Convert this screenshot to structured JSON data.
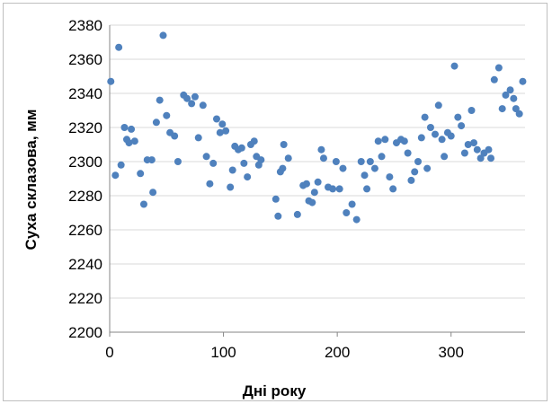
{
  "chart_data": {
    "type": "scatter",
    "title": "",
    "xlabel": "Дні року",
    "ylabel": "Суха склазова, мм",
    "xlim": [
      0,
      365
    ],
    "ylim": [
      2200,
      2380
    ],
    "xticks": [
      "0",
      "100",
      "200",
      "300"
    ],
    "yticks": [
      "2200",
      "2220",
      "2240",
      "2260",
      "2280",
      "2300",
      "2320",
      "2340",
      "2360",
      "2380"
    ],
    "grid": "horizontal",
    "legend": "none",
    "marker_color": "#4f81bd",
    "series": [
      {
        "points": [
          [
            1,
            2347
          ],
          [
            5,
            2292
          ],
          [
            8,
            2367
          ],
          [
            10,
            2298
          ],
          [
            13,
            2320
          ],
          [
            15,
            2313
          ],
          [
            17,
            2311
          ],
          [
            19,
            2319
          ],
          [
            22,
            2312
          ],
          [
            27,
            2293
          ],
          [
            30,
            2275
          ],
          [
            33,
            2301
          ],
          [
            37,
            2301
          ],
          [
            38,
            2282
          ],
          [
            41,
            2323
          ],
          [
            44,
            2336
          ],
          [
            47,
            2374
          ],
          [
            50,
            2327
          ],
          [
            53,
            2317
          ],
          [
            57,
            2315
          ],
          [
            60,
            2300
          ],
          [
            65,
            2339
          ],
          [
            68,
            2337
          ],
          [
            72,
            2334
          ],
          [
            75,
            2338
          ],
          [
            78,
            2314
          ],
          [
            82,
            2333
          ],
          [
            85,
            2303
          ],
          [
            88,
            2287
          ],
          [
            91,
            2299
          ],
          [
            94,
            2325
          ],
          [
            97,
            2317
          ],
          [
            99,
            2322
          ],
          [
            102,
            2318
          ],
          [
            106,
            2285
          ],
          [
            108,
            2295
          ],
          [
            110,
            2309
          ],
          [
            113,
            2307
          ],
          [
            116,
            2308
          ],
          [
            118,
            2299
          ],
          [
            121,
            2291
          ],
          [
            124,
            2310
          ],
          [
            127,
            2312
          ],
          [
            129,
            2303
          ],
          [
            131,
            2298
          ],
          [
            133,
            2301
          ],
          [
            146,
            2278
          ],
          [
            148,
            2268
          ],
          [
            150,
            2294
          ],
          [
            152,
            2296
          ],
          [
            153,
            2310
          ],
          [
            157,
            2302
          ],
          [
            165,
            2269
          ],
          [
            170,
            2286
          ],
          [
            173,
            2287
          ],
          [
            175,
            2277
          ],
          [
            178,
            2276
          ],
          [
            180,
            2282
          ],
          [
            183,
            2288
          ],
          [
            186,
            2307
          ],
          [
            188,
            2302
          ],
          [
            192,
            2285
          ],
          [
            196,
            2284
          ],
          [
            199,
            2300
          ],
          [
            202,
            2284
          ],
          [
            205,
            2296
          ],
          [
            208,
            2270
          ],
          [
            213,
            2275
          ],
          [
            217,
            2266
          ],
          [
            221,
            2300
          ],
          [
            224,
            2292
          ],
          [
            226,
            2284
          ],
          [
            229,
            2300
          ],
          [
            233,
            2296
          ],
          [
            236,
            2312
          ],
          [
            239,
            2303
          ],
          [
            242,
            2313
          ],
          [
            246,
            2291
          ],
          [
            249,
            2284
          ],
          [
            252,
            2311
          ],
          [
            256,
            2313
          ],
          [
            259,
            2312
          ],
          [
            262,
            2305
          ],
          [
            265,
            2289
          ],
          [
            268,
            2294
          ],
          [
            271,
            2300
          ],
          [
            274,
            2314
          ],
          [
            277,
            2326
          ],
          [
            279,
            2296
          ],
          [
            282,
            2320
          ],
          [
            286,
            2316
          ],
          [
            289,
            2333
          ],
          [
            292,
            2313
          ],
          [
            294,
            2303
          ],
          [
            297,
            2317
          ],
          [
            300,
            2315
          ],
          [
            303,
            2356
          ],
          [
            306,
            2326
          ],
          [
            309,
            2321
          ],
          [
            312,
            2305
          ],
          [
            315,
            2310
          ],
          [
            318,
            2330
          ],
          [
            320,
            2311
          ],
          [
            323,
            2307
          ],
          [
            326,
            2302
          ],
          [
            329,
            2305
          ],
          [
            333,
            2307
          ],
          [
            335,
            2302
          ],
          [
            338,
            2348
          ],
          [
            342,
            2355
          ],
          [
            345,
            2331
          ],
          [
            348,
            2339
          ],
          [
            352,
            2342
          ],
          [
            355,
            2337
          ],
          [
            357,
            2331
          ],
          [
            360,
            2328
          ],
          [
            363,
            2347
          ]
        ]
      }
    ]
  }
}
